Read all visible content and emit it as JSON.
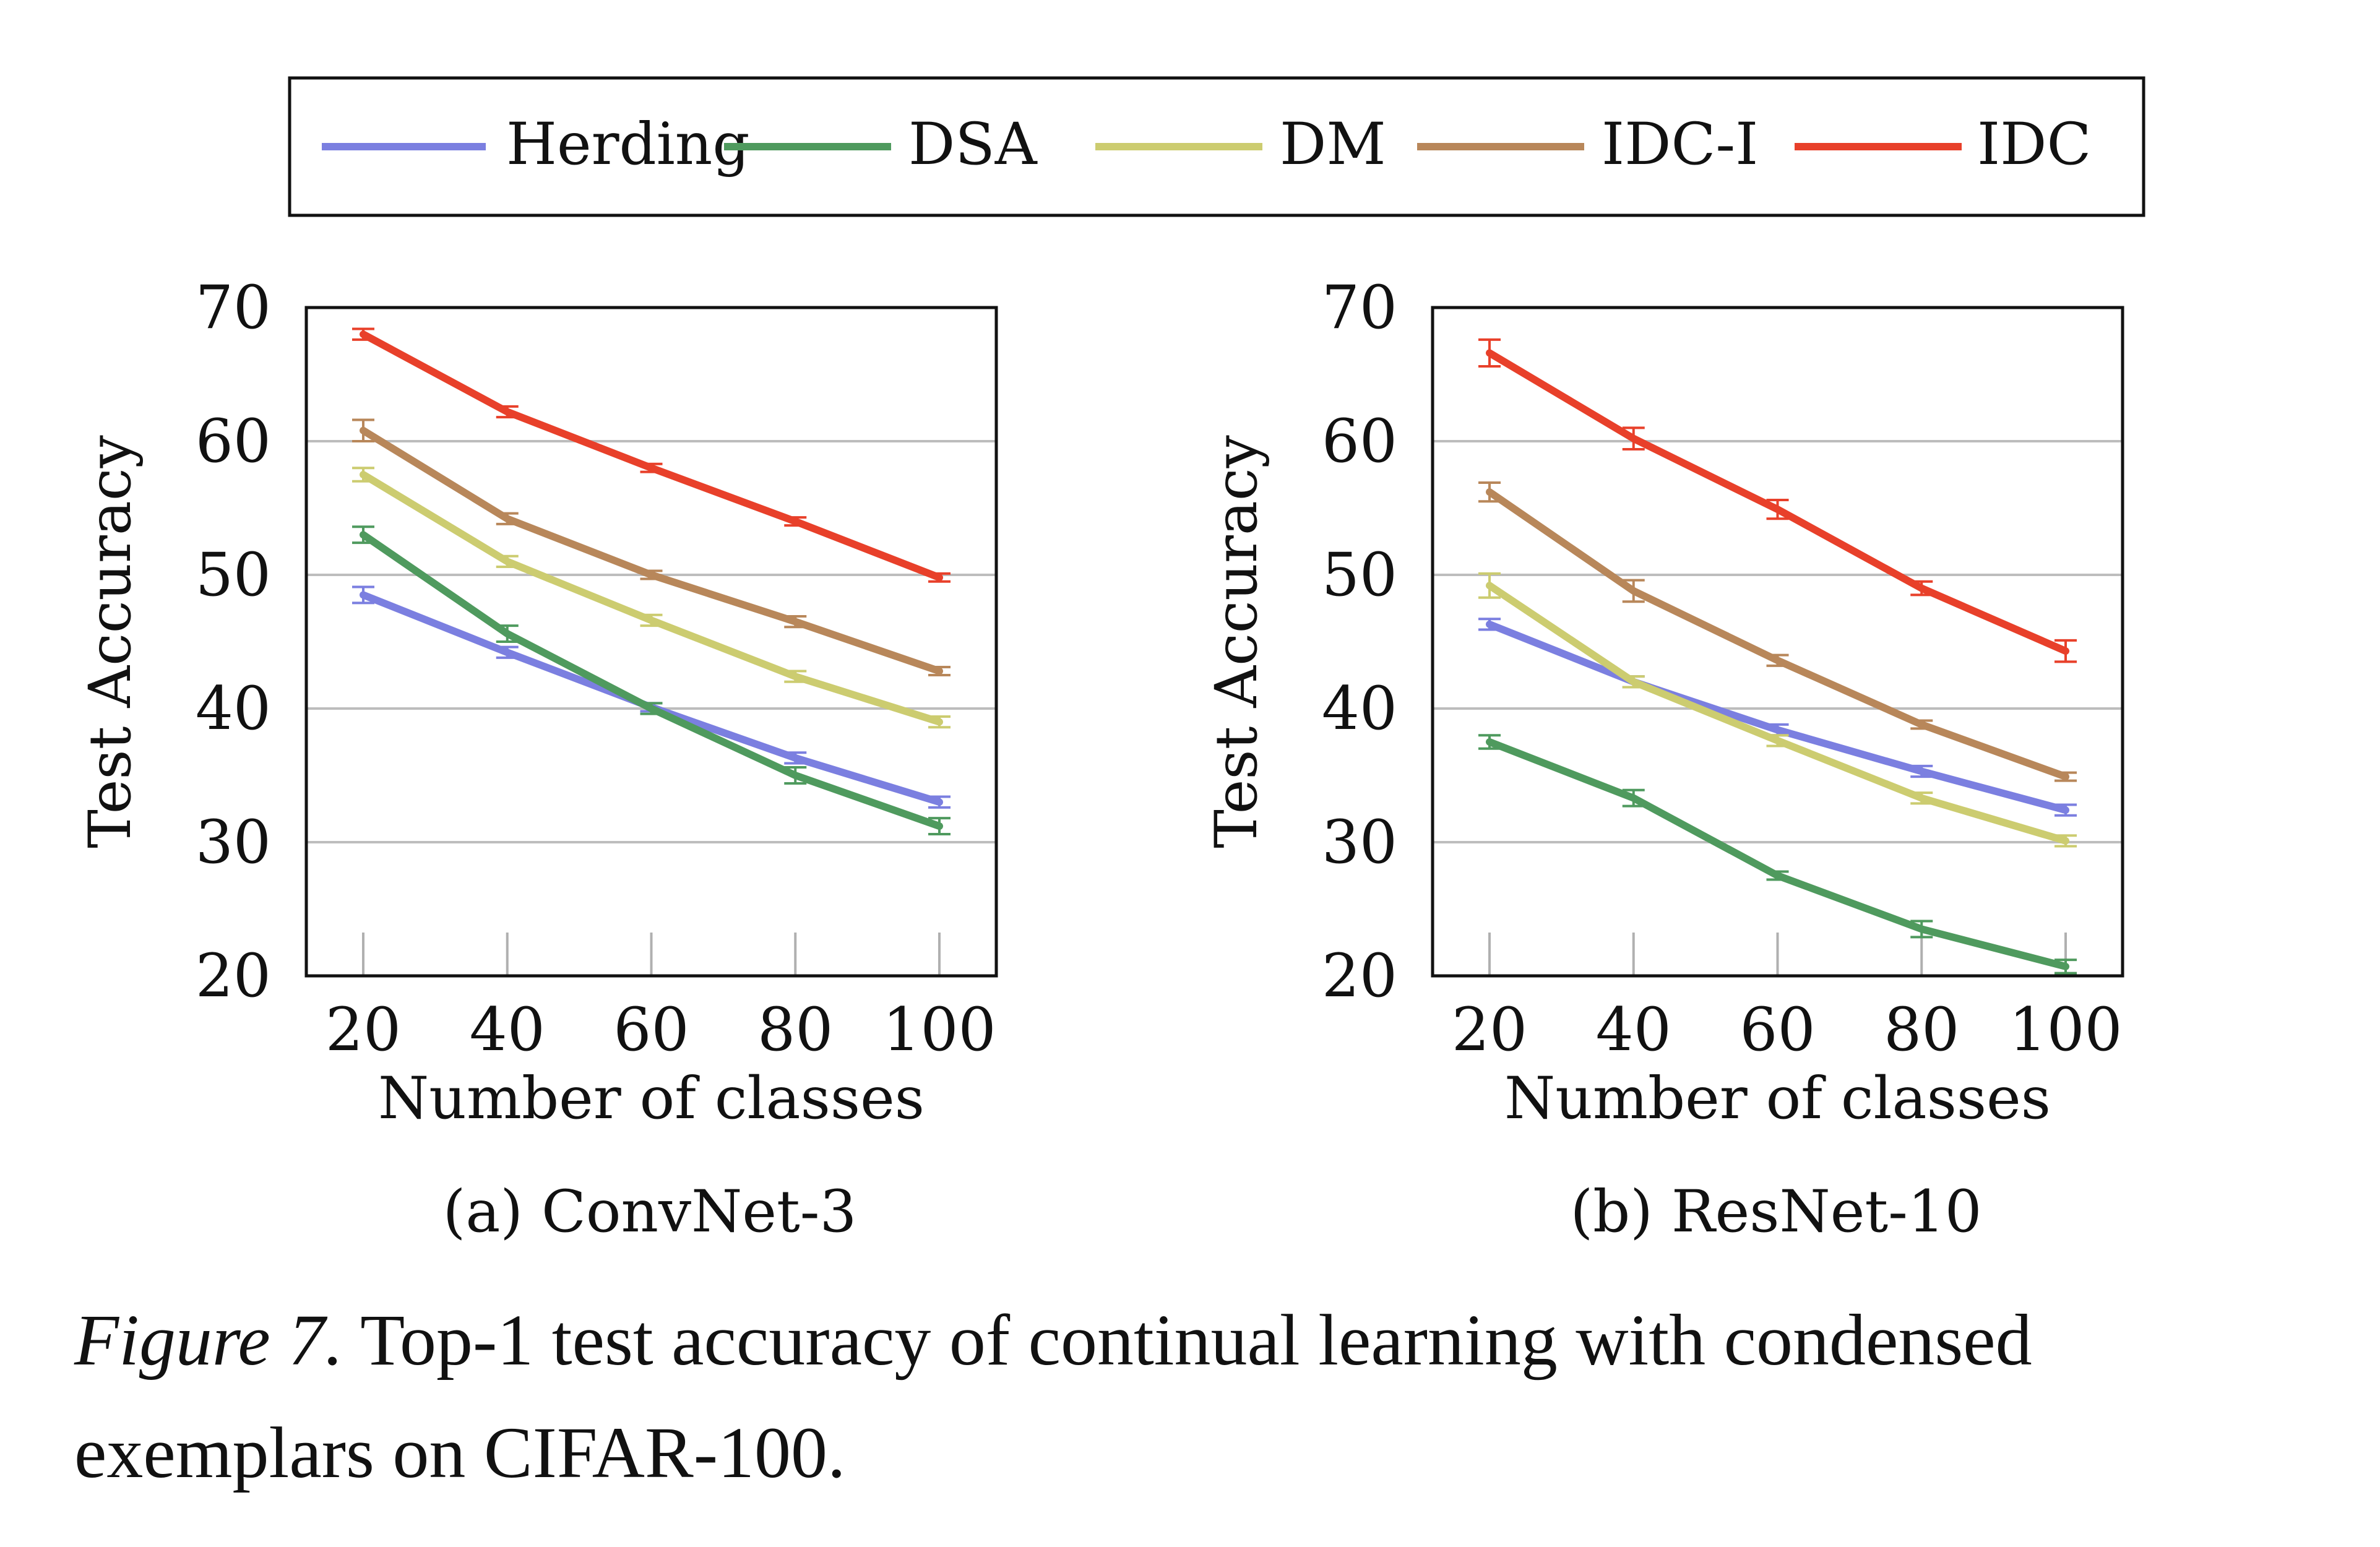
{
  "legend": [
    {
      "name": "Herding",
      "color": "#7b7fe0"
    },
    {
      "name": "DSA",
      "color": "#4f9a5e"
    },
    {
      "name": "DM",
      "color": "#cccc70"
    },
    {
      "name": "IDC-I",
      "color": "#b8875a"
    },
    {
      "name": "IDC",
      "color": "#e8402a"
    }
  ],
  "chart_data": [
    {
      "type": "line",
      "subtitle": "(a) ConvNet-3",
      "xlabel": "Number of classes",
      "ylabel": "Test Accuracy",
      "x": [
        20,
        40,
        60,
        80,
        100
      ],
      "xticks": [
        "20",
        "40",
        "60",
        "80",
        "100"
      ],
      "yticks": [
        "20",
        "30",
        "40",
        "50",
        "60",
        "70"
      ],
      "ylim": [
        20,
        70
      ],
      "grid": "horizontal",
      "error_bars": true,
      "series": [
        {
          "name": "Herding",
          "color": "#7b7fe0",
          "values": [
            48.5,
            44.2,
            40.1,
            36.3,
            33.0
          ],
          "errors": [
            0.6,
            0.4,
            0.3,
            0.4,
            0.4
          ]
        },
        {
          "name": "DSA",
          "color": "#4f9a5e",
          "values": [
            53.0,
            45.6,
            40.0,
            35.0,
            31.2
          ],
          "errors": [
            0.6,
            0.6,
            0.4,
            0.6,
            0.6
          ]
        },
        {
          "name": "DM",
          "color": "#cccc70",
          "values": [
            57.5,
            51.0,
            46.6,
            42.4,
            39.0
          ],
          "errors": [
            0.5,
            0.4,
            0.4,
            0.4,
            0.4
          ]
        },
        {
          "name": "IDC-I",
          "color": "#b8875a",
          "values": [
            60.8,
            54.2,
            50.0,
            46.5,
            42.8
          ],
          "errors": [
            0.8,
            0.4,
            0.3,
            0.4,
            0.3
          ]
        },
        {
          "name": "IDC",
          "color": "#e8402a",
          "values": [
            68.0,
            62.2,
            58.0,
            54.0,
            49.8
          ],
          "errors": [
            0.4,
            0.4,
            0.3,
            0.3,
            0.3
          ]
        }
      ]
    },
    {
      "type": "line",
      "subtitle": "(b) ResNet-10",
      "xlabel": "Number of classes",
      "ylabel": "Test Accuracy",
      "x": [
        20,
        40,
        60,
        80,
        100
      ],
      "xticks": [
        "20",
        "40",
        "60",
        "80",
        "100"
      ],
      "yticks": [
        "20",
        "30",
        "40",
        "50",
        "60",
        "70"
      ],
      "ylim": [
        20,
        70
      ],
      "grid": "horizontal",
      "error_bars": true,
      "series": [
        {
          "name": "Herding",
          "color": "#7b7fe0",
          "values": [
            46.3,
            42.0,
            38.4,
            35.3,
            32.4
          ],
          "errors": [
            0.4,
            0.4,
            0.4,
            0.4,
            0.4
          ]
        },
        {
          "name": "DSA",
          "color": "#4f9a5e",
          "values": [
            37.5,
            33.3,
            27.5,
            23.5,
            20.7
          ],
          "errors": [
            0.5,
            0.6,
            0.3,
            0.6,
            0.5
          ]
        },
        {
          "name": "DM",
          "color": "#cccc70",
          "values": [
            49.2,
            42.0,
            37.6,
            33.3,
            30.1
          ],
          "errors": [
            0.9,
            0.4,
            0.4,
            0.4,
            0.4
          ]
        },
        {
          "name": "IDC-I",
          "color": "#b8875a",
          "values": [
            56.2,
            48.8,
            43.6,
            38.8,
            34.9
          ],
          "errors": [
            0.7,
            0.8,
            0.4,
            0.3,
            0.3
          ]
        },
        {
          "name": "IDC",
          "color": "#e8402a",
          "values": [
            66.6,
            60.2,
            54.9,
            49.0,
            44.3
          ],
          "errors": [
            1.0,
            0.8,
            0.7,
            0.5,
            0.8
          ]
        }
      ]
    }
  ],
  "caption": {
    "label": "Figure 7.",
    "text": " Top-1 test accuracy of continual learning with condensed exemplars on CIFAR-100."
  }
}
